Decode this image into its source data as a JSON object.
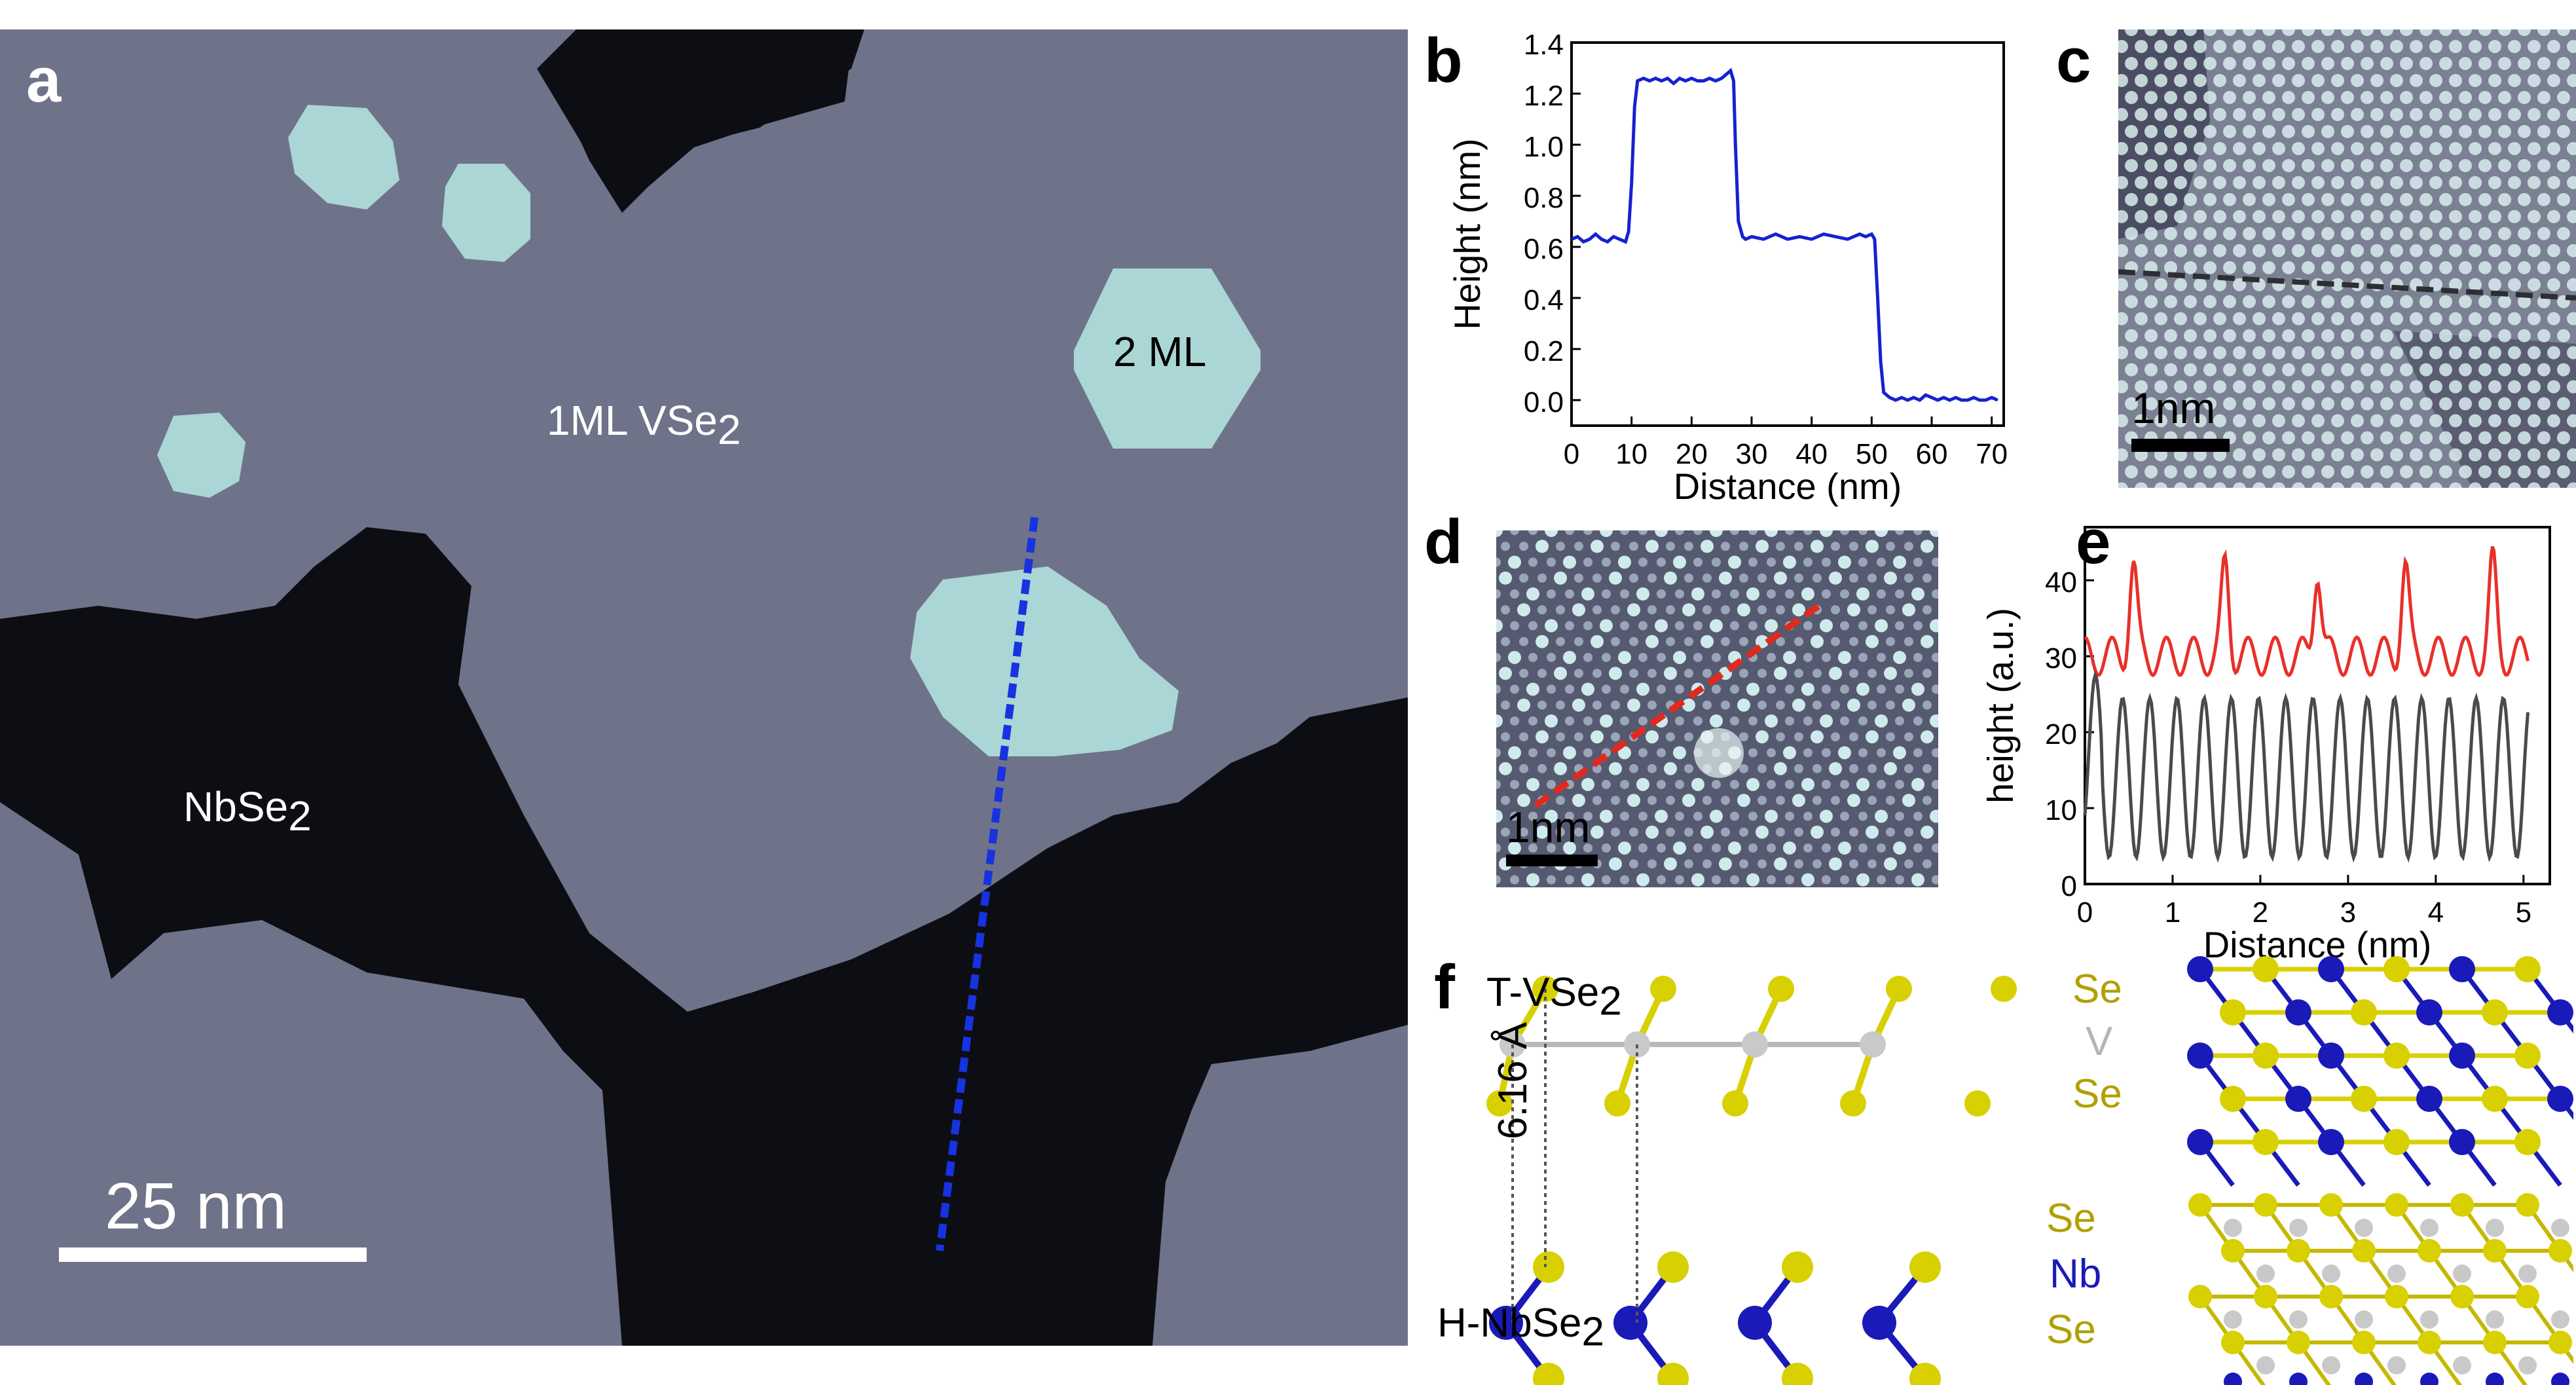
{
  "panels": {
    "a": {
      "label": "a",
      "region_1ml": "1ML VSe",
      "region_1ml_sub": "2",
      "region_2ml": "2 ML",
      "region_nb": "NbSe",
      "region_nb_sub": "2",
      "scalebar": "25 nm",
      "colors": {
        "line": "#1733e0",
        "bg_dark": "#0d0e13",
        "terrace": "#6e7288",
        "island": "#a9d5d5"
      }
    },
    "b": {
      "label": "b"
    },
    "c": {
      "label": "c",
      "scalebar": "1nm"
    },
    "d": {
      "label": "d",
      "scalebar": "1nm"
    },
    "e": {
      "label": "e"
    },
    "f": {
      "label": "f",
      "top_layer": "T-VSe",
      "top_layer_sub": "2",
      "bottom_layer": "H-NbSe",
      "bottom_layer_sub": "2",
      "distance": "6.16 Å",
      "atom_labels": [
        "Se",
        "V",
        "Se",
        "Se",
        "Nb",
        "Se"
      ],
      "colors": {
        "se": "#d8d000",
        "v": "#c9c9c9",
        "nb": "#1a1ab8"
      }
    }
  },
  "chart_data": [
    {
      "type": "line",
      "panel": "b",
      "xlabel": "Distance (nm)",
      "ylabel": "Height (nm)",
      "xlim": [
        0,
        72
      ],
      "ylim": [
        -0.1,
        1.4
      ],
      "xticks": [
        "0",
        "10",
        "20",
        "30",
        "40",
        "50",
        "60",
        "70"
      ],
      "yticks": [
        "0.0",
        "0.2",
        "0.4",
        "0.6",
        "0.8",
        "1.0",
        "1.2",
        "1.4"
      ],
      "series": [
        {
          "color": "#1522cf",
          "x": [
            0,
            1,
            2,
            3,
            4,
            5,
            6,
            7,
            8,
            9,
            9.5,
            10,
            10.5,
            11,
            12,
            13,
            14,
            15,
            16,
            17,
            18,
            19,
            20,
            21,
            22,
            23,
            24,
            25,
            26,
            26.5,
            27,
            27.3,
            27.8,
            28.5,
            29,
            30,
            32,
            34,
            36,
            38,
            40,
            42,
            44,
            46,
            48,
            49,
            50,
            50.5,
            51,
            51.5,
            52,
            53,
            54,
            55,
            56,
            57,
            58,
            59,
            60,
            61,
            62,
            63,
            64,
            65,
            66,
            67,
            68,
            69,
            70,
            71
          ],
          "y": [
            0.63,
            0.64,
            0.62,
            0.63,
            0.65,
            0.63,
            0.62,
            0.64,
            0.63,
            0.62,
            0.66,
            0.85,
            1.15,
            1.25,
            1.26,
            1.25,
            1.26,
            1.25,
            1.26,
            1.24,
            1.26,
            1.25,
            1.26,
            1.25,
            1.25,
            1.26,
            1.25,
            1.26,
            1.28,
            1.29,
            1.25,
            1.0,
            0.7,
            0.64,
            0.63,
            0.64,
            0.63,
            0.65,
            0.63,
            0.64,
            0.63,
            0.65,
            0.64,
            0.63,
            0.65,
            0.64,
            0.65,
            0.63,
            0.4,
            0.15,
            0.03,
            0.01,
            0.0,
            0.01,
            0.0,
            0.01,
            0.0,
            0.02,
            0.01,
            0.0,
            0.01,
            0.0,
            0.01,
            0.0,
            0.0,
            0.01,
            0.0,
            0.0,
            0.01,
            0.0
          ]
        }
      ]
    },
    {
      "type": "line",
      "panel": "e",
      "xlabel": "Distance (nm)",
      "ylabel": "height (a.u.)",
      "xlim": [
        0,
        5.3
      ],
      "ylim": [
        0,
        47
      ],
      "xticks": [
        "0",
        "1",
        "2",
        "3",
        "4",
        "5"
      ],
      "yticks": [
        "0",
        "10",
        "20",
        "30",
        "40"
      ],
      "series": [
        {
          "color": "#e8302a",
          "generator": "red_profile"
        },
        {
          "color": "#4a4a4a",
          "generator": "gray_profile"
        }
      ]
    }
  ]
}
